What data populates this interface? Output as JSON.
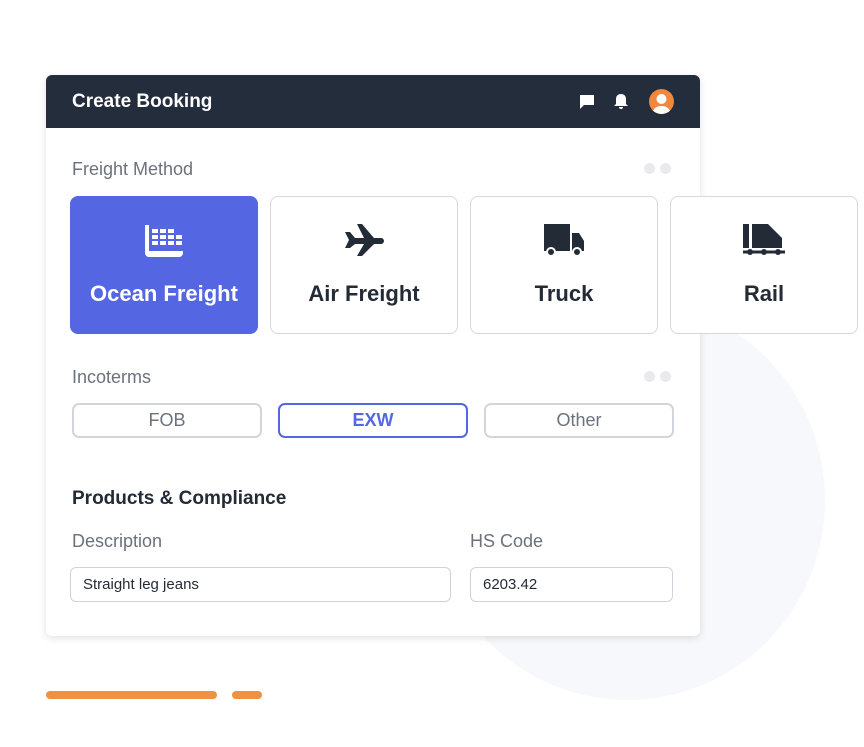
{
  "header": {
    "title": "Create Booking",
    "icons": [
      "chat-icon",
      "bell-icon",
      "avatar-icon"
    ]
  },
  "freight": {
    "label": "Freight Method",
    "options": [
      {
        "label": "Ocean Freight",
        "icon": "ship-icon",
        "selected": true
      },
      {
        "label": "Air Freight",
        "icon": "airplane-icon",
        "selected": false
      },
      {
        "label": "Truck",
        "icon": "truck-icon",
        "selected": false
      },
      {
        "label": "Rail",
        "icon": "train-icon",
        "selected": false
      }
    ]
  },
  "incoterms": {
    "label": "Incoterms",
    "options": [
      {
        "label": "FOB",
        "selected": false
      },
      {
        "label": "EXW",
        "selected": true
      },
      {
        "label": "Other",
        "selected": false
      }
    ]
  },
  "products": {
    "title": "Products & Compliance",
    "description_label": "Description",
    "description_value": "Straight leg jeans",
    "hs_label": "HS Code",
    "hs_value": "6203.42"
  },
  "colors": {
    "accent": "#5466e2",
    "header": "#242d3b",
    "orange": "#f0913f"
  }
}
